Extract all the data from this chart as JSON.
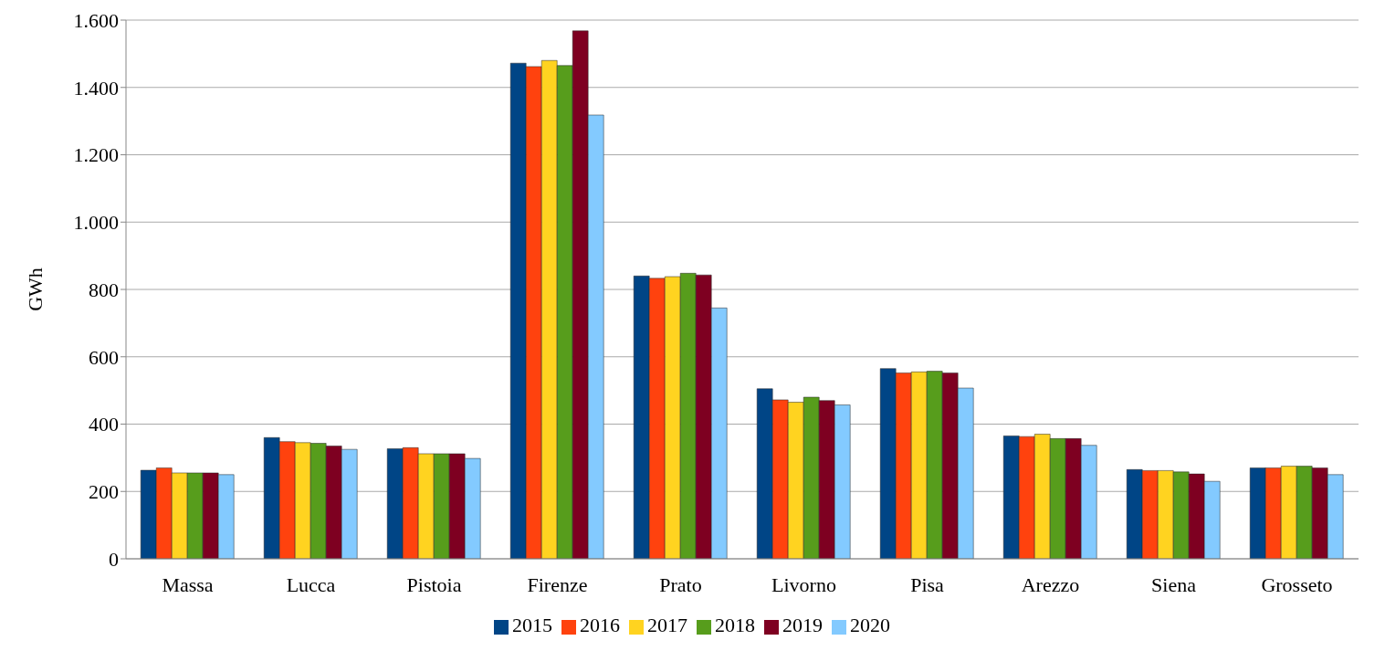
{
  "chart_data": {
    "type": "bar",
    "ylabel": "GWh",
    "categories": [
      "Massa",
      "Lucca",
      "Pistoia",
      "Firenze",
      "Prato",
      "Livorno",
      "Pisa",
      "Arezzo",
      "Siena",
      "Grosseto"
    ],
    "series": [
      {
        "name": "2015",
        "color": "#004586",
        "values": [
          263,
          360,
          327,
          1472,
          840,
          505,
          565,
          365,
          265,
          270
        ]
      },
      {
        "name": "2016",
        "color": "#ff420e",
        "values": [
          270,
          348,
          330,
          1462,
          833,
          472,
          552,
          363,
          262,
          270
        ]
      },
      {
        "name": "2017",
        "color": "#ffd320",
        "values": [
          255,
          345,
          312,
          1480,
          838,
          465,
          555,
          370,
          262,
          275
        ]
      },
      {
        "name": "2018",
        "color": "#579d1c",
        "values": [
          255,
          343,
          312,
          1465,
          848,
          480,
          557,
          357,
          258,
          275
        ]
      },
      {
        "name": "2019",
        "color": "#7e0021",
        "values": [
          255,
          335,
          312,
          1568,
          843,
          470,
          552,
          357,
          252,
          270
        ]
      },
      {
        "name": "2020",
        "color": "#83caff",
        "values": [
          250,
          325,
          298,
          1318,
          745,
          457,
          507,
          337,
          230,
          250
        ]
      }
    ],
    "ylim": [
      0,
      1600
    ],
    "yticks": [
      0,
      200,
      400,
      600,
      800,
      {
        "value": 1000,
        "label": "1.000"
      },
      {
        "value": 1200,
        "label": "1.200"
      },
      {
        "value": 1400,
        "label": "1.400"
      },
      {
        "value": 1600,
        "label": "1.600"
      }
    ],
    "grid": "y",
    "legend": "bottom"
  }
}
